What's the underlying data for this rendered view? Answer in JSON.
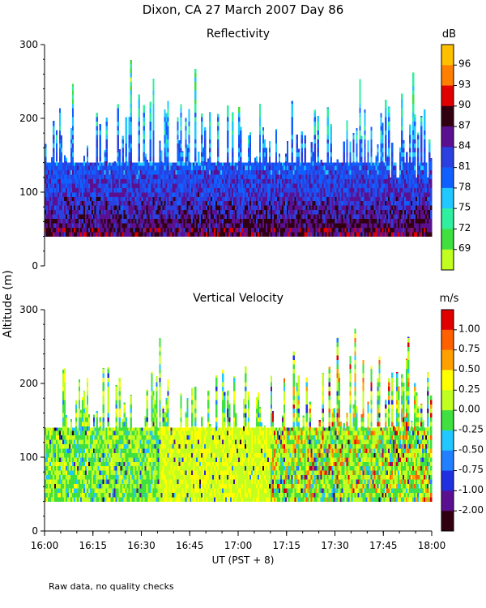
{
  "title": "Dixon, CA 27 March 2007  Day  86",
  "shared_ylabel": "Altitude (m)",
  "shared_xlabel": "UT  (PST + 8)",
  "footnote": "Raw data, no quality checks",
  "x_ticks": [
    "16:00",
    "16:15",
    "16:30",
    "16:45",
    "17:00",
    "17:15",
    "17:30",
    "17:45",
    "18:00"
  ],
  "chart_data": [
    {
      "type": "heatmap",
      "title": "Reflectivity",
      "xlabel": "UT  (PST + 8)",
      "ylabel": "Altitude (m)",
      "xlim_minutes": [
        0,
        120
      ],
      "ylim": [
        0,
        300
      ],
      "y_ticks": [
        "0",
        "100",
        "200",
        "300"
      ],
      "colorbar": {
        "unit": "dB",
        "labels": [
          "96",
          "93",
          "90",
          "87",
          "84",
          "81",
          "78",
          "75",
          "72",
          "69"
        ],
        "colors": [
          "#ffc000",
          "#ff8000",
          "#e00000",
          "#300010",
          "#5a1090",
          "#2a40e0",
          "#1060ff",
          "#20c8ff",
          "#30f0a0",
          "#40e040",
          "#c0ff20"
        ]
      },
      "coverage": {
        "min_altitude": 40,
        "typical_top": 140,
        "max_top": 280
      }
    },
    {
      "type": "heatmap",
      "title": "Vertical Velocity",
      "xlabel": "UT  (PST + 8)",
      "ylabel": "Altitude (m)",
      "xlim_minutes": [
        0,
        120
      ],
      "ylim": [
        0,
        300
      ],
      "y_ticks": [
        "0",
        "100",
        "200",
        "300"
      ],
      "colorbar": {
        "unit": "m/s",
        "labels": [
          "1.00",
          "0.75",
          "0.50",
          "0.25",
          "0.00",
          "-0.25",
          "-0.50",
          "-0.75",
          "-1.00",
          "-2.00"
        ],
        "colors": [
          "#e00000",
          "#ff6000",
          "#ffa000",
          "#ffff00",
          "#c0ff20",
          "#40e040",
          "#20c8ff",
          "#2080ff",
          "#2030e0",
          "#5a1090",
          "#300010"
        ]
      },
      "coverage": {
        "min_altitude": 40,
        "typical_top": 140,
        "max_top": 280
      }
    }
  ]
}
